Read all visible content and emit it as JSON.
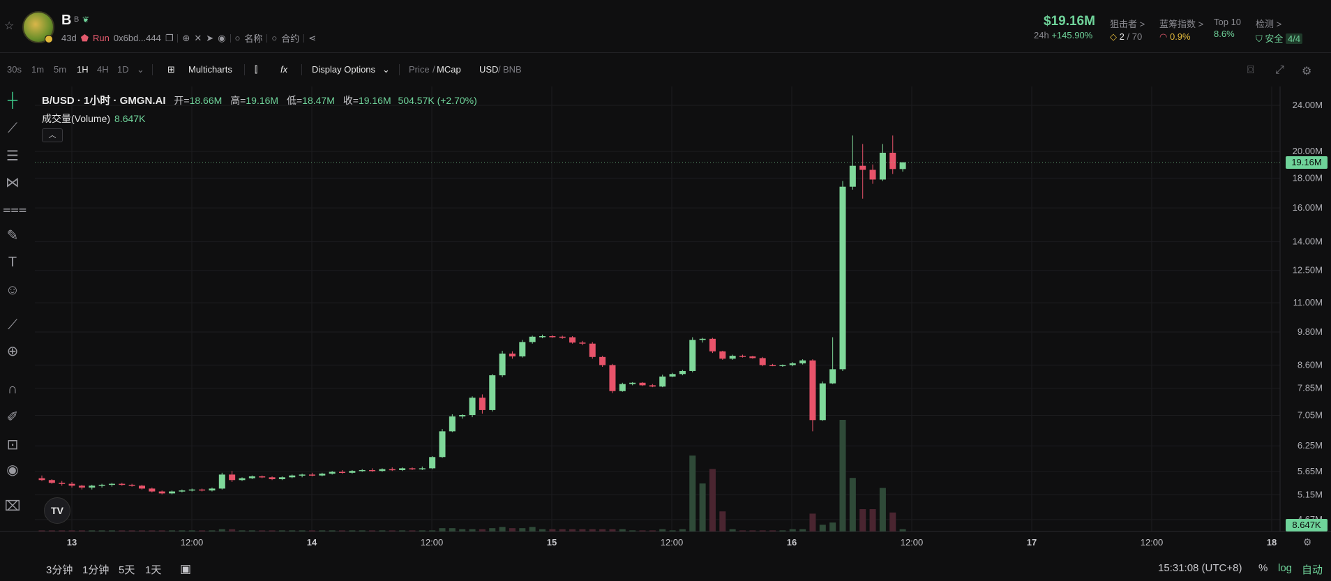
{
  "header": {
    "token_symbol": "B",
    "token_subtitle": "B",
    "age": "43d",
    "run_label": "Run",
    "contract": "0x6bd...444",
    "name_search": "名称",
    "contract_search": "合约",
    "market_cap": "$19.16M",
    "change_label": "24h",
    "change_value": "+145.90%",
    "snipers_label": "狙击者 >",
    "snipers_value": "2",
    "snipers_total": "/ 70",
    "bluechip_label": "蓝筹指数 >",
    "bluechip_value": "0.9%",
    "top10_label": "Top 10",
    "top10_value": "8.6%",
    "check_label": "检测 >",
    "check_safe": "安全",
    "check_score": "4/4",
    "accent": "#6fd39a",
    "down_color": "#e35a6d"
  },
  "toolbar": {
    "intervals": [
      "30s",
      "1m",
      "5m",
      "1H",
      "4H",
      "1D"
    ],
    "active_interval": "1H",
    "multicharts": "Multicharts",
    "fx": "fx",
    "display_options": "Display Options",
    "price": "Price",
    "mcap": "MCap",
    "usd": "USD",
    "bnb": "BNB"
  },
  "legend": {
    "symbol": "B/USD · 1小时 · GMGN.AI",
    "open_label": "开=",
    "open": "18.66M",
    "high_label": "高=",
    "high": "19.16M",
    "low_label": "低=",
    "low": "18.47M",
    "close_label": "收=",
    "close": "19.16M",
    "change": "504.57K (+2.70%)",
    "volume_label": "成交量(Volume)",
    "volume_value": "8.647K"
  },
  "price_tag": "19.16M",
  "volume_tag": "8.647K",
  "tv_logo": "TV",
  "bottom": {
    "ranges": [
      "3分钟",
      "1分钟",
      "5天",
      "1天"
    ],
    "time": "15:31:08 (UTC+8)",
    "pct": "%",
    "log": "log",
    "auto": "自动"
  },
  "chart_data": {
    "type": "candlestick",
    "y_scale": "log",
    "y_ticks": [
      "24.00M",
      "20.00M",
      "18.00M",
      "16.00M",
      "14.00M",
      "12.50M",
      "11.00M",
      "9.80M",
      "8.60M",
      "7.85M",
      "7.05M",
      "6.25M",
      "5.65M",
      "5.15M",
      "4.67M"
    ],
    "y_tick_values": [
      24,
      20,
      18,
      16,
      14,
      12.5,
      11,
      9.8,
      8.6,
      7.85,
      7.05,
      6.25,
      5.65,
      5.15,
      4.67
    ],
    "x_ticks": [
      "13",
      "12:00",
      "14",
      "12:00",
      "15",
      "12:00",
      "16",
      "12:00",
      "17",
      "12:00",
      "18"
    ],
    "unit": "M",
    "candles": [
      [
        5.5,
        5.56,
        5.44,
        5.46
      ],
      [
        5.46,
        5.48,
        5.38,
        5.4
      ],
      [
        5.4,
        5.44,
        5.34,
        5.38
      ],
      [
        5.38,
        5.42,
        5.3,
        5.34
      ],
      [
        5.34,
        5.36,
        5.26,
        5.3
      ],
      [
        5.3,
        5.36,
        5.26,
        5.34
      ],
      [
        5.34,
        5.38,
        5.3,
        5.36
      ],
      [
        5.36,
        5.4,
        5.32,
        5.38
      ],
      [
        5.38,
        5.4,
        5.34,
        5.36
      ],
      [
        5.36,
        5.38,
        5.32,
        5.34
      ],
      [
        5.34,
        5.36,
        5.26,
        5.28
      ],
      [
        5.28,
        5.3,
        5.2,
        5.22
      ],
      [
        5.22,
        5.24,
        5.16,
        5.18
      ],
      [
        5.18,
        5.24,
        5.16,
        5.22
      ],
      [
        5.22,
        5.26,
        5.2,
        5.24
      ],
      [
        5.24,
        5.28,
        5.22,
        5.26
      ],
      [
        5.26,
        5.28,
        5.22,
        5.24
      ],
      [
        5.24,
        5.3,
        5.22,
        5.28
      ],
      [
        5.28,
        5.62,
        5.26,
        5.58
      ],
      [
        5.58,
        5.66,
        5.42,
        5.46
      ],
      [
        5.46,
        5.52,
        5.44,
        5.5
      ],
      [
        5.5,
        5.56,
        5.48,
        5.54
      ],
      [
        5.54,
        5.56,
        5.5,
        5.52
      ],
      [
        5.52,
        5.54,
        5.46,
        5.48
      ],
      [
        5.48,
        5.54,
        5.46,
        5.52
      ],
      [
        5.52,
        5.58,
        5.5,
        5.56
      ],
      [
        5.56,
        5.6,
        5.52,
        5.58
      ],
      [
        5.58,
        5.62,
        5.54,
        5.56
      ],
      [
        5.56,
        5.62,
        5.54,
        5.6
      ],
      [
        5.6,
        5.66,
        5.58,
        5.64
      ],
      [
        5.64,
        5.68,
        5.6,
        5.62
      ],
      [
        5.62,
        5.68,
        5.6,
        5.66
      ],
      [
        5.66,
        5.7,
        5.64,
        5.68
      ],
      [
        5.68,
        5.72,
        5.64,
        5.66
      ],
      [
        5.66,
        5.72,
        5.64,
        5.7
      ],
      [
        5.7,
        5.74,
        5.66,
        5.68
      ],
      [
        5.68,
        5.74,
        5.66,
        5.72
      ],
      [
        5.72,
        5.74,
        5.68,
        5.7
      ],
      [
        5.7,
        5.76,
        5.68,
        5.72
      ],
      [
        5.72,
        6.0,
        5.7,
        5.98
      ],
      [
        5.98,
        6.68,
        5.96,
        6.62
      ],
      [
        6.62,
        7.08,
        6.6,
        7.02
      ],
      [
        7.02,
        7.08,
        6.96,
        7.06
      ],
      [
        7.06,
        7.6,
        7.0,
        7.56
      ],
      [
        7.56,
        7.66,
        7.1,
        7.2
      ],
      [
        7.2,
        8.3,
        7.16,
        8.26
      ],
      [
        8.26,
        9.1,
        8.2,
        9.0
      ],
      [
        9.0,
        9.08,
        8.82,
        8.9
      ],
      [
        8.9,
        9.5,
        8.86,
        9.42
      ],
      [
        9.42,
        9.66,
        9.36,
        9.62
      ],
      [
        9.62,
        9.7,
        9.56,
        9.64
      ],
      [
        9.64,
        9.68,
        9.58,
        9.62
      ],
      [
        9.62,
        9.66,
        9.54,
        9.6
      ],
      [
        9.6,
        9.64,
        9.36,
        9.4
      ],
      [
        9.4,
        9.46,
        9.3,
        9.36
      ],
      [
        9.36,
        9.42,
        8.82,
        8.88
      ],
      [
        8.88,
        8.92,
        8.54,
        8.6
      ],
      [
        8.6,
        8.64,
        7.7,
        7.76
      ],
      [
        7.76,
        8.02,
        7.74,
        7.98
      ],
      [
        7.98,
        8.04,
        7.94,
        8.02
      ],
      [
        8.02,
        8.04,
        7.92,
        7.94
      ],
      [
        7.94,
        7.98,
        7.88,
        7.9
      ],
      [
        7.9,
        8.28,
        7.88,
        8.22
      ],
      [
        8.22,
        8.34,
        8.2,
        8.3
      ],
      [
        8.3,
        8.44,
        8.26,
        8.4
      ],
      [
        8.4,
        9.6,
        8.36,
        9.5
      ],
      [
        9.5,
        9.58,
        9.4,
        9.54
      ],
      [
        9.54,
        9.58,
        9.02,
        9.08
      ],
      [
        9.08,
        9.1,
        8.78,
        8.82
      ],
      [
        8.82,
        8.96,
        8.78,
        8.92
      ],
      [
        8.92,
        8.96,
        8.86,
        8.9
      ],
      [
        8.9,
        8.92,
        8.82,
        8.84
      ],
      [
        8.84,
        8.88,
        8.56,
        8.6
      ],
      [
        8.6,
        8.64,
        8.56,
        8.58
      ],
      [
        8.58,
        8.62,
        8.54,
        8.6
      ],
      [
        8.6,
        8.7,
        8.56,
        8.66
      ],
      [
        8.66,
        8.8,
        8.62,
        8.76
      ],
      [
        8.76,
        8.8,
        6.62,
        6.92
      ],
      [
        6.92,
        8.06,
        6.9,
        8.0
      ],
      [
        8.0,
        9.6,
        7.98,
        8.46
      ],
      [
        8.46,
        17.8,
        8.4,
        17.4
      ],
      [
        17.4,
        21.3,
        17.2,
        18.9
      ],
      [
        18.9,
        20.6,
        16.6,
        18.6
      ],
      [
        18.6,
        19.0,
        17.6,
        17.9
      ],
      [
        17.9,
        20.6,
        17.8,
        19.9
      ],
      [
        19.9,
        21.3,
        18.3,
        18.66
      ],
      [
        18.66,
        19.16,
        18.47,
        19.16
      ]
    ],
    "volumes_relative": [
      0.01,
      0.01,
      0.01,
      0.01,
      0.01,
      0.01,
      0.01,
      0.01,
      0.01,
      0.01,
      0.01,
      0.01,
      0.01,
      0.01,
      0.01,
      0.01,
      0.01,
      0.01,
      0.02,
      0.02,
      0.01,
      0.01,
      0.01,
      0.01,
      0.01,
      0.01,
      0.01,
      0.01,
      0.01,
      0.01,
      0.01,
      0.01,
      0.01,
      0.01,
      0.01,
      0.01,
      0.01,
      0.01,
      0.01,
      0.01,
      0.03,
      0.03,
      0.02,
      0.02,
      0.02,
      0.03,
      0.04,
      0.03,
      0.03,
      0.04,
      0.02,
      0.02,
      0.02,
      0.02,
      0.02,
      0.02,
      0.02,
      0.02,
      0.02,
      0.01,
      0.01,
      0.01,
      0.02,
      0.01,
      0.02,
      0.68,
      0.43,
      0.56,
      0.18,
      0.02,
      0.01,
      0.01,
      0.01,
      0.01,
      0.01,
      0.02,
      0.02,
      0.16,
      0.06,
      0.08,
      1.0,
      0.48,
      0.2,
      0.2,
      0.39,
      0.17,
      0.02
    ]
  }
}
